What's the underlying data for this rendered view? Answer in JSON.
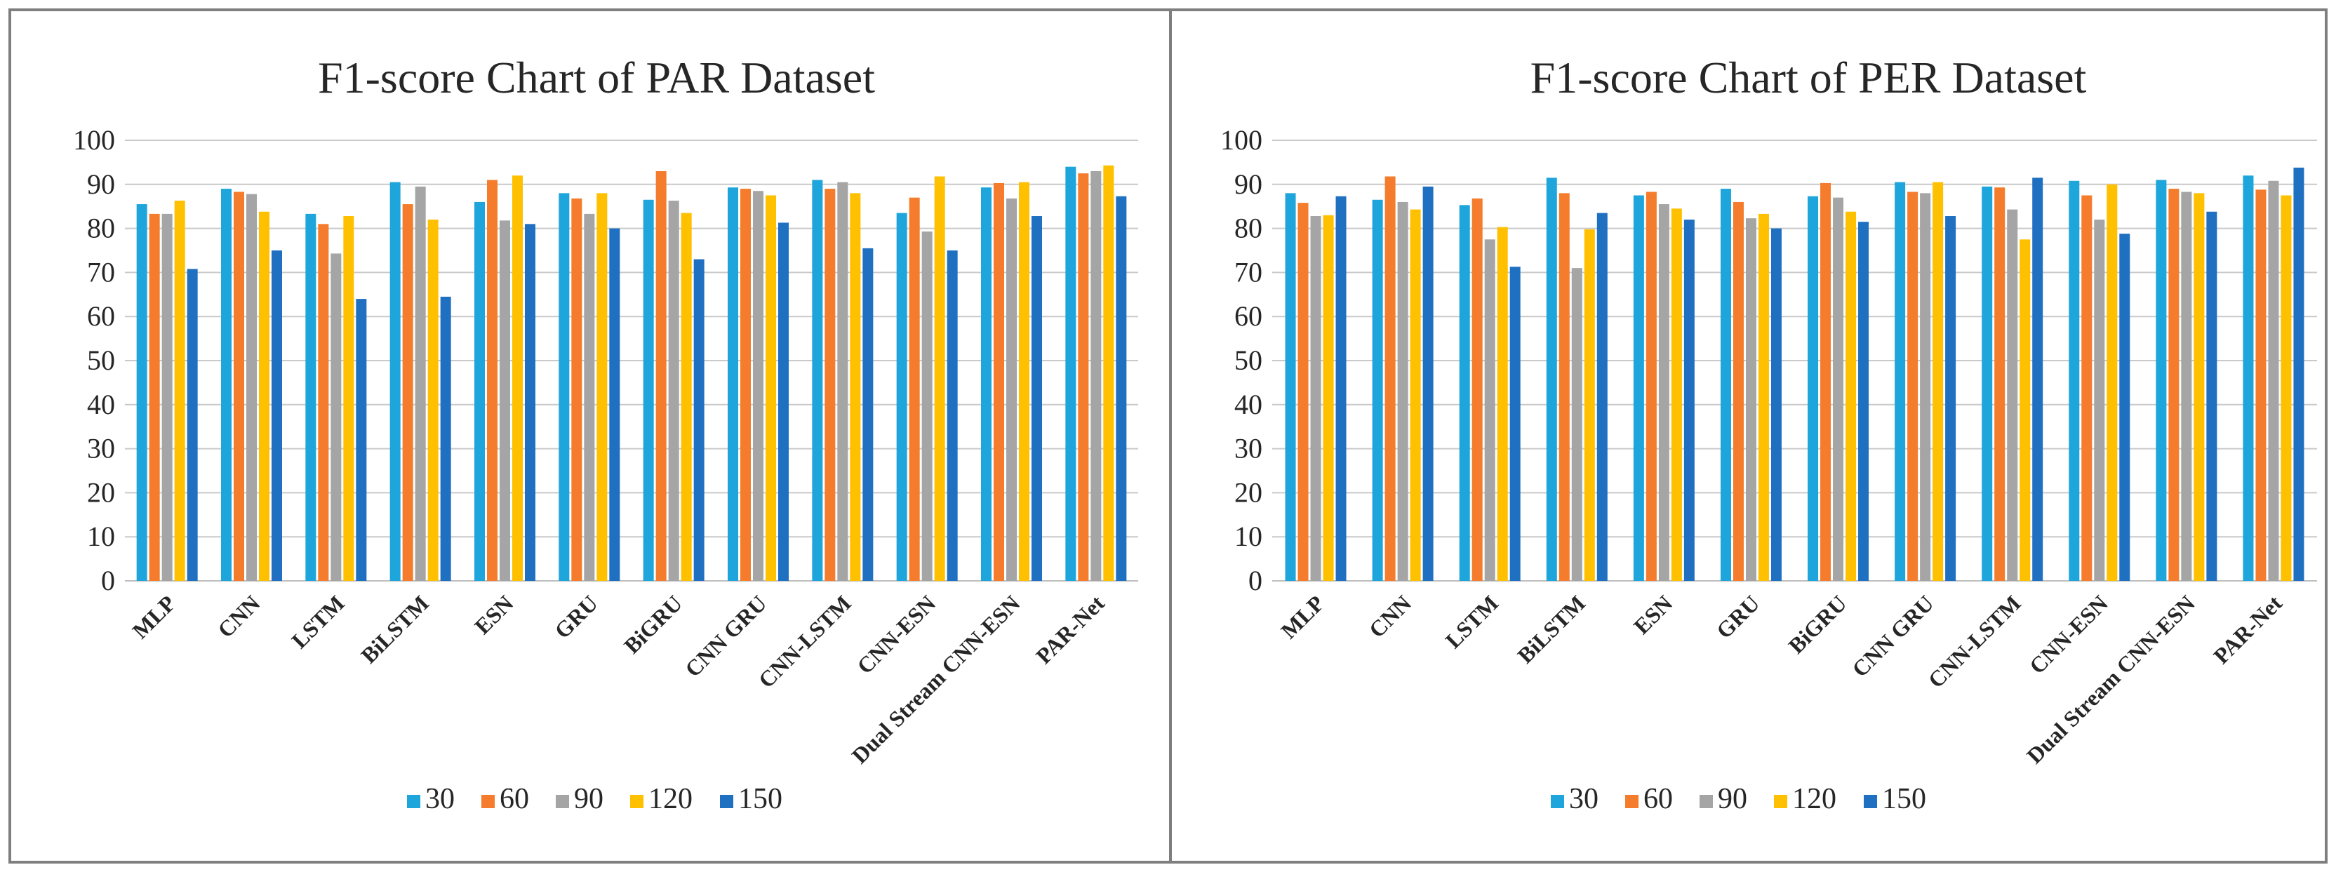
{
  "colors": {
    "s30": "#1ea6dc",
    "s60": "#f47c2c",
    "s90": "#a5a5a5",
    "s120": "#ffc000",
    "s150": "#1f70c1",
    "grid": "#c9c9c9"
  },
  "chart_data": [
    {
      "type": "bar",
      "title": "F1-score Chart of PAR Dataset",
      "xlabel": "",
      "ylabel": "",
      "ylim": [
        0,
        100
      ],
      "yticks": [
        0,
        10,
        20,
        30,
        40,
        50,
        60,
        70,
        80,
        90,
        100
      ],
      "grid": true,
      "legend_position": "bottom",
      "categories": [
        "MLP",
        "CNN",
        "LSTM",
        "BiLSTM",
        "ESN",
        "GRU",
        "BiGRU",
        "CNN GRU",
        "CNN-LSTM",
        "CNN-ESN",
        "Dual Stream CNN-ESN",
        "PAR-Net"
      ],
      "series": [
        {
          "name": "30",
          "values": [
            85.5,
            89.0,
            83.3,
            90.5,
            86.0,
            88.0,
            86.5,
            89.3,
            91.0,
            83.5,
            89.3,
            94.0
          ]
        },
        {
          "name": "60",
          "values": [
            83.3,
            88.3,
            81.0,
            85.5,
            91.0,
            86.8,
            93.0,
            89.0,
            89.0,
            87.0,
            90.3,
            92.5
          ]
        },
        {
          "name": "90",
          "values": [
            83.3,
            87.8,
            74.3,
            89.5,
            81.8,
            83.3,
            86.3,
            88.5,
            90.5,
            79.3,
            86.8,
            93.0
          ]
        },
        {
          "name": "120",
          "values": [
            86.3,
            83.8,
            82.8,
            82.0,
            92.0,
            88.0,
            83.5,
            87.5,
            88.0,
            91.8,
            90.5,
            94.3
          ]
        },
        {
          "name": "150",
          "values": [
            70.8,
            75.0,
            64.0,
            64.5,
            81.0,
            80.0,
            73.0,
            81.3,
            75.5,
            75.0,
            82.8,
            87.3
          ]
        }
      ]
    },
    {
      "type": "bar",
      "title": "F1-score Chart of PER Dataset",
      "xlabel": "",
      "ylabel": "",
      "ylim": [
        0,
        100
      ],
      "yticks": [
        0,
        10,
        20,
        30,
        40,
        50,
        60,
        70,
        80,
        90,
        100
      ],
      "grid": true,
      "legend_position": "bottom",
      "categories": [
        "MLP",
        "CNN",
        "LSTM",
        "BiLSTM",
        "ESN",
        "GRU",
        "BiGRU",
        "CNN GRU",
        "CNN-LSTM",
        "CNN-ESN",
        "Dual Stream CNN-ESN",
        "PAR-Net"
      ],
      "series": [
        {
          "name": "30",
          "values": [
            88.0,
            86.5,
            85.3,
            91.5,
            87.5,
            89.0,
            87.3,
            90.5,
            89.5,
            90.8,
            91.0,
            92.0
          ]
        },
        {
          "name": "60",
          "values": [
            85.8,
            91.8,
            86.8,
            88.0,
            88.3,
            86.0,
            90.3,
            88.3,
            89.3,
            87.5,
            89.0,
            88.8
          ]
        },
        {
          "name": "90",
          "values": [
            82.8,
            86.0,
            77.5,
            71.0,
            85.5,
            82.3,
            87.0,
            88.0,
            84.3,
            82.0,
            88.3,
            90.8
          ]
        },
        {
          "name": "120",
          "values": [
            83.0,
            84.3,
            80.3,
            79.8,
            84.5,
            83.3,
            83.8,
            90.5,
            77.5,
            90.0,
            88.0,
            87.5
          ]
        },
        {
          "name": "150",
          "values": [
            87.3,
            89.5,
            71.3,
            83.5,
            82.0,
            80.0,
            81.5,
            82.8,
            91.5,
            78.8,
            83.8,
            93.8
          ]
        }
      ]
    }
  ]
}
